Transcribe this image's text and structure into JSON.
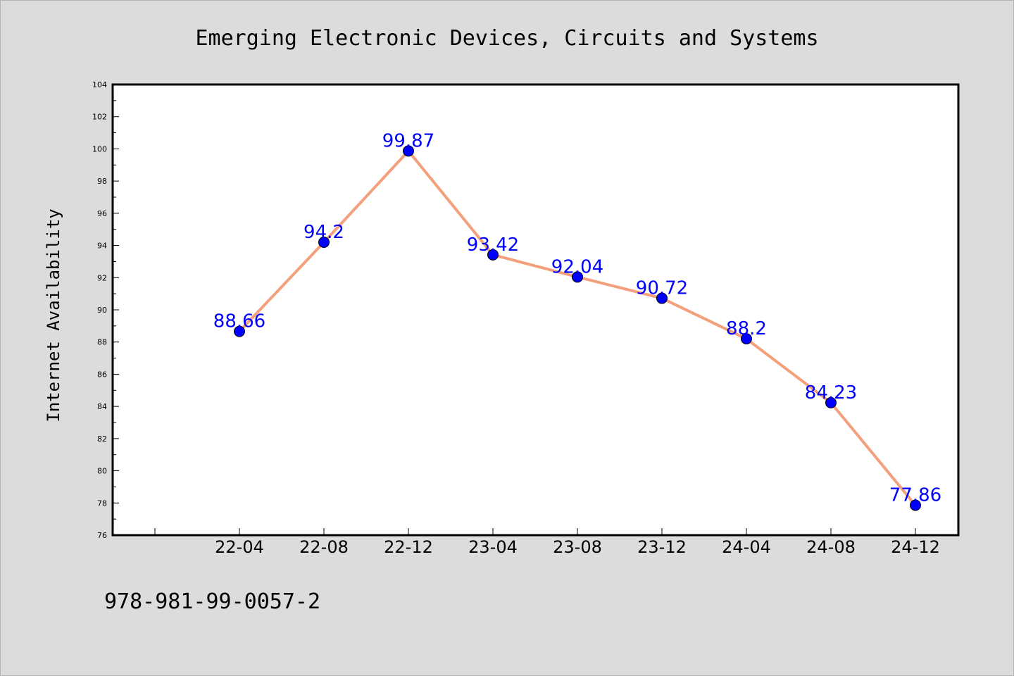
{
  "chart_data": {
    "type": "line",
    "title": "Emerging Electronic Devices, Circuits and Systems",
    "xlabel": "",
    "ylabel": "Internet Availability",
    "categories": [
      "22-04",
      "22-08",
      "22-12",
      "23-04",
      "23-08",
      "23-12",
      "24-04",
      "24-08",
      "24-12"
    ],
    "series": [
      {
        "values": [
          88.66,
          94.2,
          99.87,
          93.42,
          92.04,
          90.72,
          88.2,
          84.23,
          77.86
        ],
        "labels": [
          "88.66",
          "94.2",
          "99.87",
          "93.42",
          "92.04",
          "90.72",
          "88.2",
          "84.23",
          "77.86"
        ],
        "line_color": "#f4a07c",
        "marker_color": "#0000ff",
        "label_color": "#0000ff"
      }
    ],
    "ylim": [
      76,
      104
    ],
    "yticks": [
      76,
      78,
      80,
      82,
      84,
      86,
      88,
      90,
      92,
      94,
      96,
      98,
      100,
      102,
      104
    ],
    "grid": false,
    "legend": "none"
  },
  "footer": {
    "isbn": "978-981-99-0057-2"
  },
  "colors": {
    "background": "#dcdcdc",
    "plot_background": "#ffffff",
    "axes": "#000000"
  }
}
